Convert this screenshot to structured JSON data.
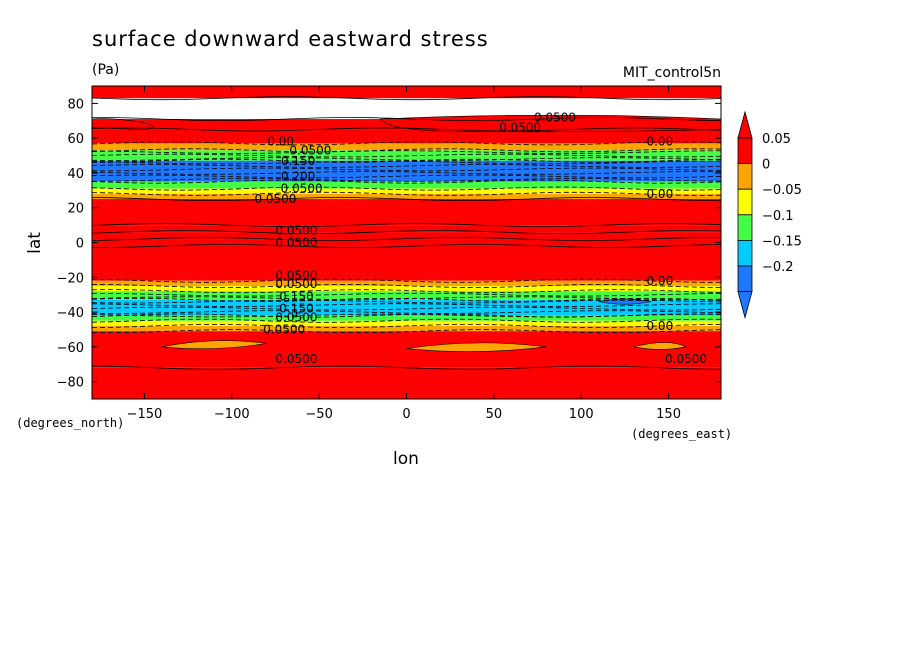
{
  "chart_data": {
    "type": "heatmap",
    "title": "surface downward eastward stress",
    "units": "(Pa)",
    "dataset_label": "MIT_control5n",
    "xlabel": "lon",
    "ylabel": "lat",
    "x_units_label": "(degrees_east)",
    "y_units_label": "(degrees_north)",
    "xlim": [
      -180,
      180
    ],
    "ylim": [
      -90,
      90
    ],
    "x_ticks": [
      -150,
      -100,
      -50,
      0,
      50,
      100,
      150
    ],
    "y_ticks": [
      -80,
      -60,
      -40,
      -20,
      0,
      20,
      40,
      60,
      80
    ],
    "x_tick_labels": [
      "−150",
      "−100",
      "−50",
      "0",
      "50",
      "100",
      "150"
    ],
    "y_tick_labels": [
      "−80",
      "−60",
      "−40",
      "−20",
      "0",
      "20",
      "40",
      "60",
      "80"
    ],
    "colorbar": {
      "levels": [
        -0.25,
        -0.2,
        -0.15,
        -0.1,
        -0.05,
        0,
        0.05,
        0.1
      ],
      "tick_labels": [
        "0.05",
        "0",
        "−0.05",
        "−0.1",
        "−0.15",
        "−0.2"
      ],
      "colors": [
        "#1e78ff",
        "#00ccff",
        "#44ff44",
        "#ffff00",
        "#ffa500",
        "#ff0000"
      ]
    },
    "zonal_bands": [
      {
        "lat_min": 83,
        "lat_max": 90,
        "value": 0.02
      },
      {
        "lat_min": 65,
        "lat_max": 71,
        "value": 0.055
      },
      {
        "lat_min": 57,
        "lat_max": 65,
        "value": 0.02
      },
      {
        "lat_min": 53,
        "lat_max": 57,
        "value": -0.04
      },
      {
        "lat_min": 47,
        "lat_max": 53,
        "value": -0.12
      },
      {
        "lat_min": 35,
        "lat_max": 47,
        "value": -0.22
      },
      {
        "lat_min": 31,
        "lat_max": 35,
        "value": -0.12
      },
      {
        "lat_min": 28,
        "lat_max": 31,
        "value": -0.07
      },
      {
        "lat_min": 25,
        "lat_max": 28,
        "value": -0.03
      },
      {
        "lat_min": 10,
        "lat_max": 25,
        "value": 0.06
      },
      {
        "lat_min": 6,
        "lat_max": 10,
        "value": 0.02
      },
      {
        "lat_min": 2,
        "lat_max": 6,
        "value": 0.06
      },
      {
        "lat_min": -2,
        "lat_max": 2,
        "value": 0.02
      },
      {
        "lat_min": -22,
        "lat_max": -2,
        "value": 0.06
      },
      {
        "lat_min": -25,
        "lat_max": -22,
        "value": -0.03
      },
      {
        "lat_min": -28,
        "lat_max": -25,
        "value": -0.07
      },
      {
        "lat_min": -33,
        "lat_max": -28,
        "value": -0.12
      },
      {
        "lat_min": -42,
        "lat_max": -33,
        "value": -0.18
      },
      {
        "lat_min": -45,
        "lat_max": -42,
        "value": -0.12
      },
      {
        "lat_min": -48,
        "lat_max": -45,
        "value": -0.07
      },
      {
        "lat_min": -51,
        "lat_max": -48,
        "value": -0.03
      },
      {
        "lat_min": -72,
        "lat_max": -51,
        "value": 0.06
      },
      {
        "lat_min": -90,
        "lat_max": -72,
        "value": 0.02
      }
    ],
    "contour_labels": [
      {
        "text": "0.0500",
        "lon": 85,
        "lat": 72
      },
      {
        "text": "0.0500",
        "lon": 65,
        "lat": 66
      },
      {
        "text": "0.00",
        "lon": -72,
        "lat": 58
      },
      {
        "text": "0.0500",
        "lon": -55,
        "lat": 53
      },
      {
        "text": "0.150",
        "lon": -62,
        "lat": 47
      },
      {
        "text": "0.200",
        "lon": -62,
        "lat": 38
      },
      {
        "text": "0.0500",
        "lon": -60,
        "lat": 31
      },
      {
        "text": "0.0500",
        "lon": -75,
        "lat": 25
      },
      {
        "text": "0.00",
        "lon": 145,
        "lat": 58
      },
      {
        "text": "0.00",
        "lon": 145,
        "lat": 28
      },
      {
        "text": "0.0500",
        "lon": -63,
        "lat": 7
      },
      {
        "text": "0.0500",
        "lon": -63,
        "lat": 0
      },
      {
        "text": "0.0500",
        "lon": -63,
        "lat": -19
      },
      {
        "text": "0.0500",
        "lon": -63,
        "lat": -24
      },
      {
        "text": "0.150",
        "lon": -63,
        "lat": -31
      },
      {
        "text": "0.150",
        "lon": -63,
        "lat": -38
      },
      {
        "text": "0.0500",
        "lon": -63,
        "lat": -43
      },
      {
        "text": "0.0500",
        "lon": -70,
        "lat": -50
      },
      {
        "text": "0.00",
        "lon": 145,
        "lat": -22
      },
      {
        "text": "0.00",
        "lon": 145,
        "lat": -48
      },
      {
        "text": "0.0500",
        "lon": -63,
        "lat": -67
      },
      {
        "text": "0.0500",
        "lon": 160,
        "lat": -67
      }
    ]
  }
}
